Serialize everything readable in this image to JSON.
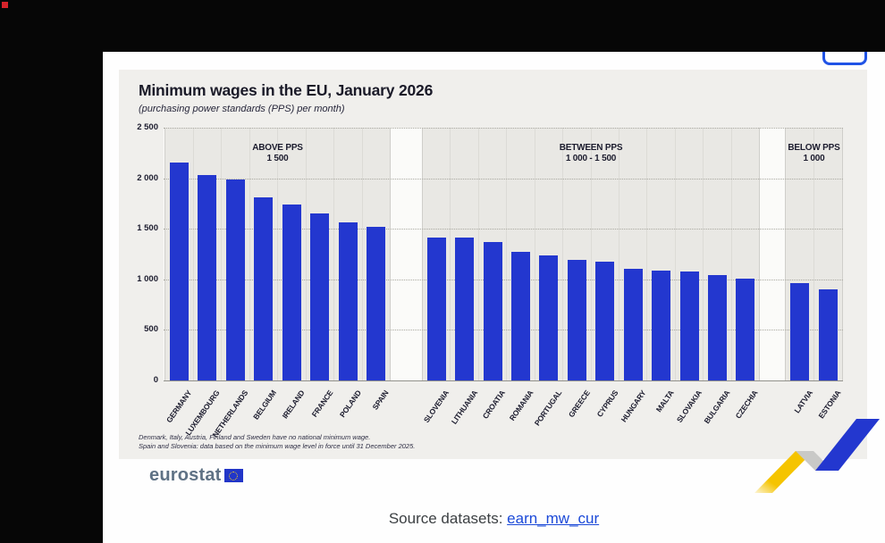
{
  "chrome": {
    "record_indicator": "recording",
    "focused_button_label": ""
  },
  "chart_data": {
    "type": "bar",
    "title": "Minimum wages in the EU, January 2026",
    "subtitle": "(purchasing power standards (PPS) per month)",
    "ylabel": "PPS per month",
    "ylim": [
      0,
      2500
    ],
    "grid": "horizontal-dotted",
    "legend": "none",
    "yticks": [
      {
        "label": "2 500",
        "value": 2500
      },
      {
        "label": "2 000",
        "value": 2000
      },
      {
        "label": "1 500",
        "value": 1500
      },
      {
        "label": "1 000",
        "value": 1000
      },
      {
        "label": "500",
        "value": 500
      },
      {
        "label": "0",
        "value": 0
      }
    ],
    "groups": [
      {
        "label_line1": "ABOVE PPS",
        "label_line2": "1 500",
        "countries": [
          "GERMANY",
          "LUXEMBOURG",
          "NETHERLANDS",
          "BELGIUM",
          "IRELAND",
          "FRANCE",
          "POLAND",
          "SPAIN"
        ],
        "values": [
          2155,
          2030,
          1985,
          1815,
          1740,
          1650,
          1560,
          1520
        ]
      },
      {
        "label_line1": "BETWEEN PPS",
        "label_line2": "1 000 - 1 500",
        "countries": [
          "SLOVENIA",
          "LITHUANIA",
          "CROATIA",
          "ROMANIA",
          "PORTUGAL",
          "GREECE",
          "CYPRUS",
          "HUNGARY",
          "MALTA",
          "SLOVAKIA",
          "BULGARIA",
          "CZECHIA"
        ],
        "values": [
          1410,
          1410,
          1370,
          1275,
          1235,
          1190,
          1175,
          1105,
          1085,
          1080,
          1040,
          1005
        ]
      },
      {
        "label_line1": "BELOW PPS",
        "label_line2": "1 000",
        "countries": [
          "LATVIA",
          "ESTONIA"
        ],
        "values": [
          965,
          900
        ]
      }
    ]
  },
  "footnotes": [
    "Denmark, Italy, Austria, Finland and Sweden have no national minimum wage.",
    "Spain and Slovenia: data based on the minimum wage level in force until 31 December 2025."
  ],
  "branding": {
    "logo_text": "eurostat"
  },
  "source": {
    "label": "Source datasets:",
    "link_text": "earn_mw_cur"
  },
  "colors": {
    "bar_blue": "#2337cf",
    "accent_yellow": "#f5c400",
    "link_blue": "#1b49d8",
    "flag_blue": "#2236c8",
    "star_yellow": "#ffd617"
  }
}
